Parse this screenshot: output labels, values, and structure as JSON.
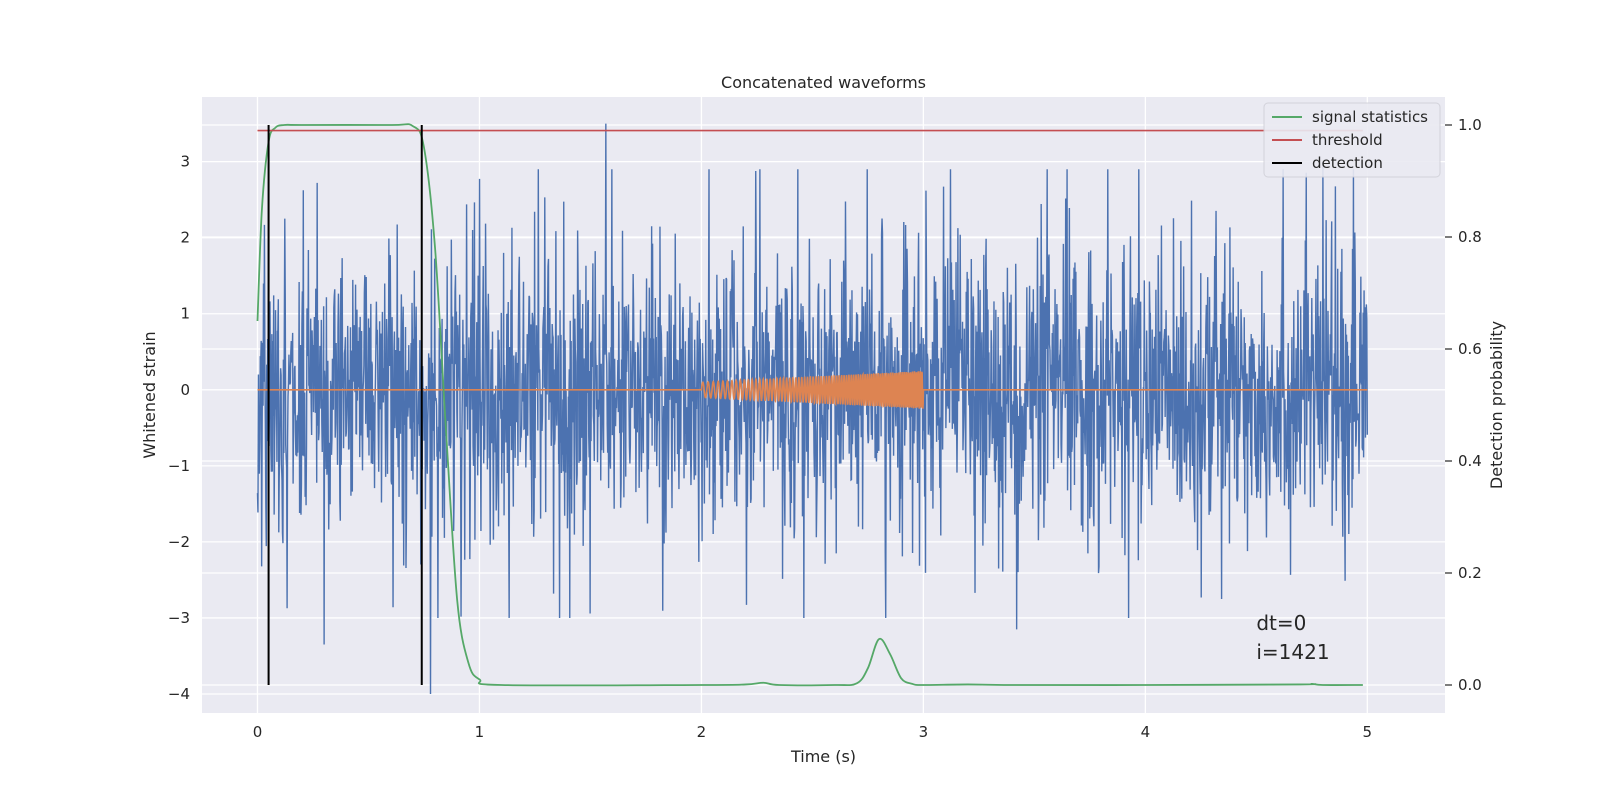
{
  "chart_data": {
    "type": "line",
    "title": "Concatenated waveforms",
    "xlabel": "Time (s)",
    "ylabel": "Whitened strain",
    "y2label": "Detection probability",
    "xlim": [
      -0.25,
      5.35
    ],
    "ylim": [
      -4.25,
      3.85
    ],
    "y2lim": [
      -0.05,
      1.05
    ],
    "x_ticks": [
      0,
      1,
      2,
      3,
      4,
      5
    ],
    "y_ticks": [
      -4,
      -3,
      -2,
      -1,
      0,
      1,
      2,
      3
    ],
    "y_tick_labels": [
      "−4",
      "−3",
      "−2",
      "−1",
      "0",
      "1",
      "2",
      "3"
    ],
    "y2_ticks": [
      0.0,
      0.2,
      0.4,
      0.6,
      0.8,
      1.0
    ],
    "y2_tick_labels": [
      "0.0",
      "0.2",
      "0.4",
      "0.6",
      "0.8",
      "1.0"
    ],
    "grid": true,
    "legend_position": "top-right",
    "legend": [
      {
        "label": "signal statistics",
        "color": "#55a868"
      },
      {
        "label": "threshold",
        "color": "#c44e52"
      },
      {
        "label": "detection",
        "color": "#000000"
      }
    ],
    "series": [
      {
        "role": "whitened-noise",
        "color": "#4c72b0",
        "x_range": [
          0,
          5
        ],
        "y_typical_envelope": [
          -1.5,
          1.5
        ],
        "notable_peaks": [
          {
            "x": 1.57,
            "y": 3.5
          },
          {
            "x": 0.78,
            "y": -4.0
          },
          {
            "x": 0.3,
            "y": -3.35
          },
          {
            "x": 3.42,
            "y": -3.15
          },
          {
            "x": 4.8,
            "y": 3.0
          }
        ]
      },
      {
        "role": "injected-chirp",
        "color": "#dd8452",
        "baseline": 0,
        "chirp_x_range": [
          2.0,
          3.0
        ],
        "amplitude_start": 0.1,
        "amplitude_end": 0.25
      },
      {
        "name": "signal statistics",
        "color": "#55a868",
        "axis": "right",
        "x": [
          0.0,
          0.02,
          0.05,
          0.08,
          0.12,
          0.2,
          0.6,
          0.7,
          0.75,
          0.8,
          0.85,
          0.9,
          0.95,
          1.0,
          1.1,
          2.0,
          2.2,
          2.28,
          2.35,
          2.6,
          2.7,
          2.75,
          2.8,
          2.85,
          2.9,
          2.95,
          3.0,
          3.2,
          3.4,
          4.0,
          4.7,
          4.75,
          4.8,
          4.98
        ],
        "values": [
          0.65,
          0.85,
          0.97,
          0.995,
          1.0,
          1.0,
          1.0,
          0.998,
          0.96,
          0.78,
          0.45,
          0.15,
          0.04,
          0.01,
          0.0,
          0.0,
          0.001,
          0.004,
          0.0,
          0.0,
          0.003,
          0.03,
          0.082,
          0.055,
          0.012,
          0.002,
          0.0,
          0.001,
          0.0,
          0.0,
          0.001,
          0.002,
          0.0,
          0.0
        ]
      },
      {
        "name": "threshold",
        "color": "#c44e52",
        "axis": "right",
        "x": [
          0,
          4.98
        ],
        "values": [
          0.99,
          0.99
        ]
      }
    ],
    "detections": {
      "color": "#000000",
      "x": [
        0.05,
        0.74
      ],
      "y2_range": [
        0,
        1.0
      ]
    },
    "annotations": [
      "dt=0",
      "i=1421"
    ]
  }
}
